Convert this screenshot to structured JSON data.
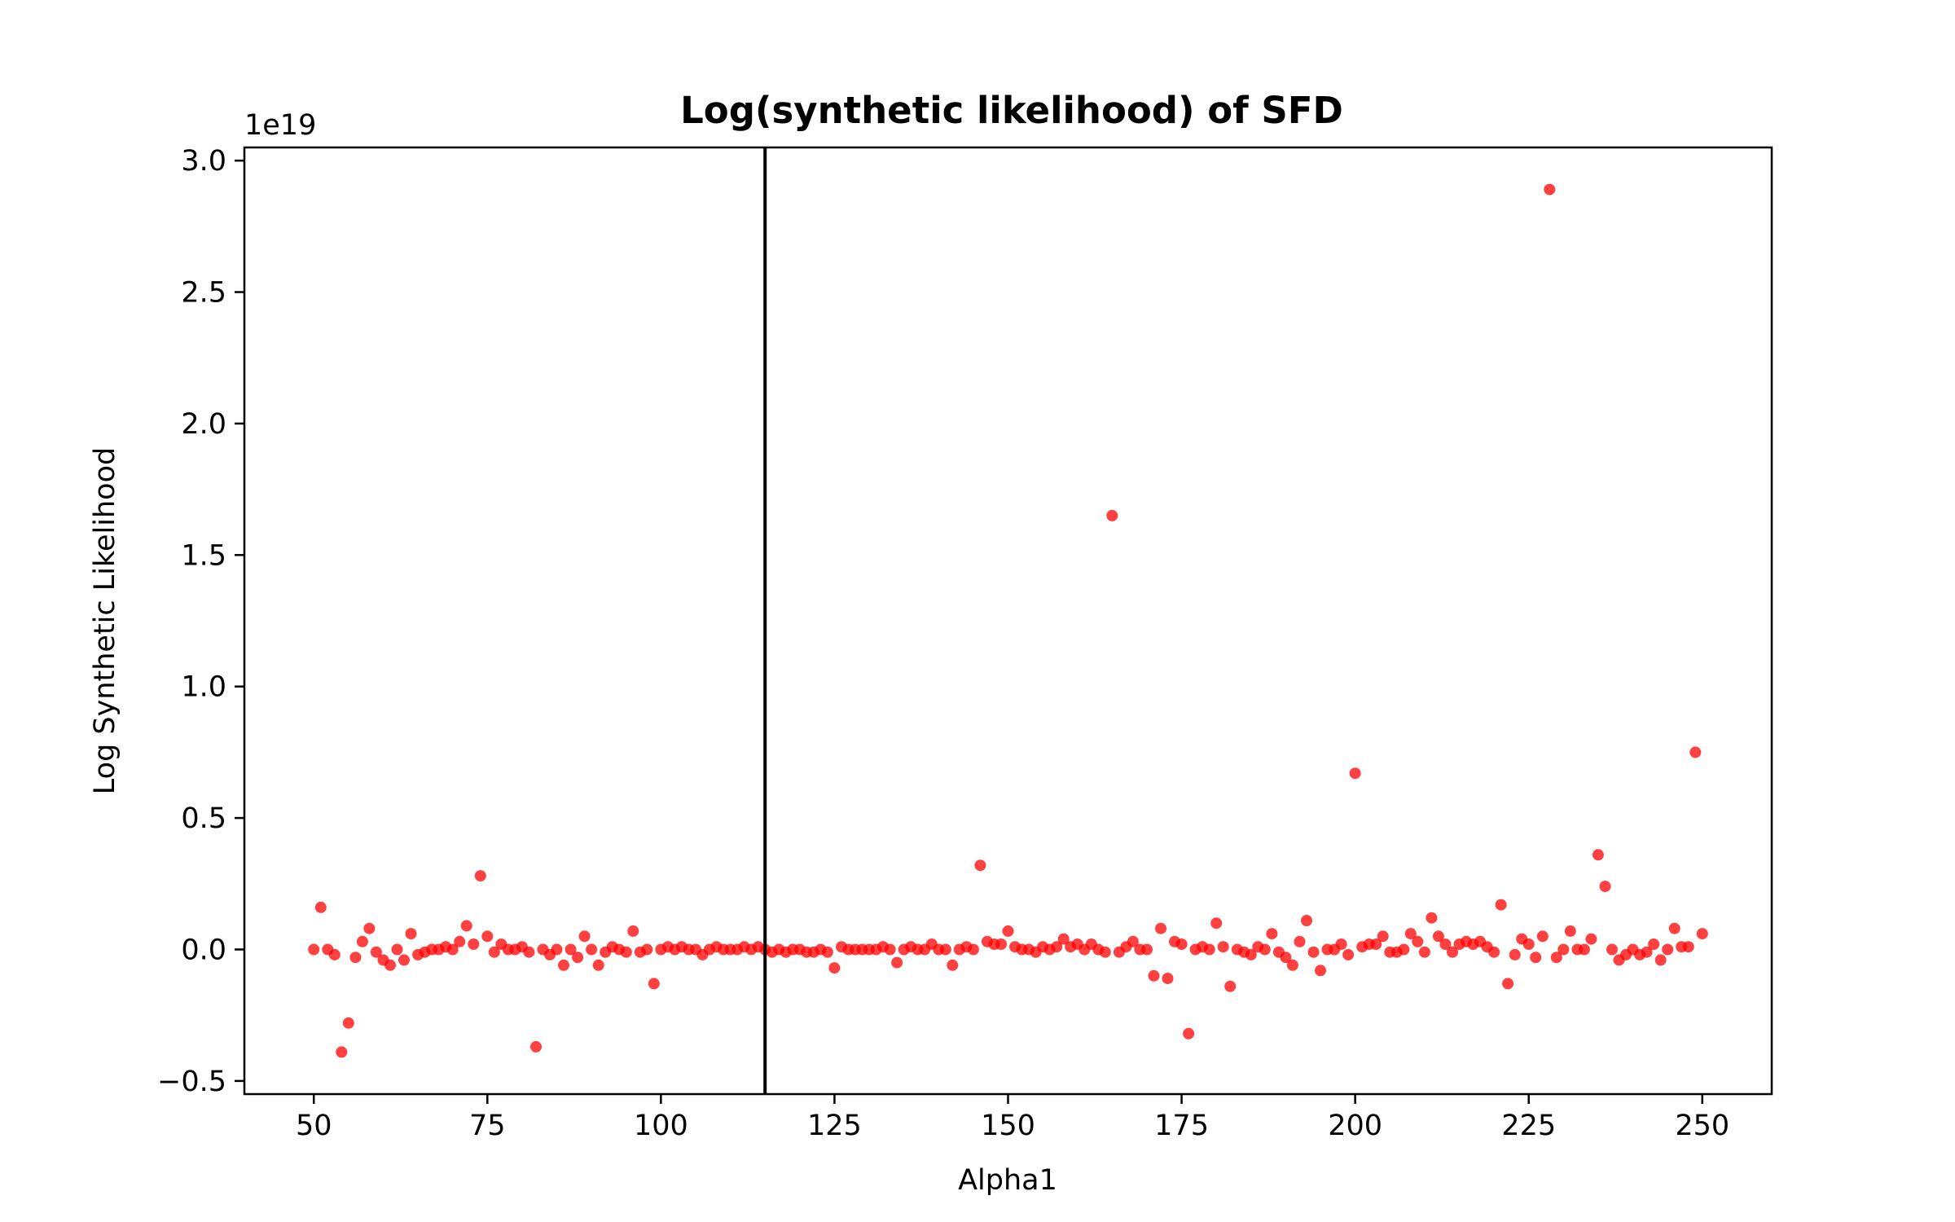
{
  "chart_data": {
    "type": "scatter",
    "title": "Log(synthetic likelihood) of SFD",
    "xlabel": "Alpha1",
    "ylabel": "Log Synthetic Likelihood",
    "y_scale_label": "1e19",
    "xlim": [
      40,
      260
    ],
    "ylim": [
      -0.55,
      3.05
    ],
    "xticks": [
      50,
      75,
      100,
      125,
      150,
      175,
      200,
      225,
      250
    ],
    "yticks": [
      -0.5,
      0.0,
      0.5,
      1.0,
      1.5,
      2.0,
      2.5,
      3.0
    ],
    "ytick_labels": [
      "−0.5",
      "0.0",
      "0.5",
      "1.0",
      "1.5",
      "2.0",
      "2.5",
      "3.0"
    ],
    "vertical_line_x": 115,
    "grid": false,
    "marker_color": "#ff0000",
    "line_color": "#000000",
    "series": [
      {
        "x": [
          50,
          51,
          52,
          53,
          54,
          55,
          56,
          57,
          58,
          59,
          60,
          61,
          62,
          63,
          64,
          65,
          66,
          67,
          68,
          69,
          70,
          71,
          72,
          73,
          74,
          75,
          76,
          77,
          78,
          79,
          80,
          81,
          82,
          83,
          84,
          85,
          86,
          87,
          88,
          89,
          90,
          91,
          92,
          93,
          94,
          95,
          96,
          97,
          98,
          99,
          100,
          101,
          102,
          103,
          104,
          105,
          106,
          107,
          108,
          109,
          110,
          111,
          112,
          113,
          114,
          115,
          116,
          117,
          118,
          119,
          120,
          121,
          122,
          123,
          124,
          125,
          126,
          127,
          128,
          129,
          130,
          131,
          132,
          133,
          134,
          135,
          136,
          137,
          138,
          139,
          140,
          141,
          142,
          143,
          144,
          145,
          146,
          147,
          148,
          149,
          150,
          151,
          152,
          153,
          154,
          155,
          156,
          157,
          158,
          159,
          160,
          161,
          162,
          163,
          164,
          165,
          166,
          167,
          168,
          169,
          170,
          171,
          172,
          173,
          174,
          175,
          176,
          177,
          178,
          179,
          180,
          181,
          182,
          183,
          184,
          185,
          186,
          187,
          188,
          189,
          190,
          191,
          192,
          193,
          194,
          195,
          196,
          197,
          198,
          199,
          200,
          201,
          202,
          203,
          204,
          205,
          206,
          207,
          208,
          209,
          210,
          211,
          212,
          213,
          214,
          215,
          216,
          217,
          218,
          219,
          220,
          221,
          222,
          223,
          224,
          225,
          226,
          227,
          228,
          229,
          230,
          231,
          232,
          233,
          234,
          235,
          236,
          237,
          238,
          239,
          240,
          241,
          242,
          243,
          244,
          245,
          246,
          247,
          248,
          249,
          250
        ],
        "y": [
          0.0,
          0.16,
          0.0,
          -0.02,
          -0.39,
          -0.28,
          -0.03,
          0.03,
          0.08,
          -0.01,
          -0.04,
          -0.06,
          0.0,
          -0.04,
          0.06,
          -0.02,
          -0.01,
          0.0,
          0.0,
          0.01,
          0.0,
          0.03,
          0.09,
          0.02,
          0.28,
          0.05,
          -0.01,
          0.02,
          0.0,
          0.0,
          0.01,
          -0.01,
          -0.37,
          0.0,
          -0.02,
          0.0,
          -0.06,
          0.0,
          -0.03,
          0.05,
          0.0,
          -0.06,
          -0.01,
          0.01,
          0.0,
          -0.01,
          0.07,
          -0.01,
          0.0,
          -0.13,
          0.0,
          0.01,
          0.0,
          0.01,
          0.0,
          0.0,
          -0.02,
          0.0,
          0.01,
          0.0,
          0.0,
          0.0,
          0.01,
          0.0,
          0.01,
          0.0,
          -0.01,
          0.0,
          -0.01,
          0.0,
          0.0,
          -0.01,
          -0.01,
          0.0,
          -0.01,
          -0.07,
          0.01,
          0.0,
          0.0,
          0.0,
          0.0,
          0.0,
          0.01,
          0.0,
          -0.05,
          0.0,
          0.01,
          0.0,
          0.0,
          0.02,
          0.0,
          0.0,
          -0.06,
          0.0,
          0.01,
          0.0,
          0.32,
          0.03,
          0.02,
          0.02,
          0.07,
          0.01,
          0.0,
          0.0,
          -0.01,
          0.01,
          0.0,
          0.01,
          0.04,
          0.01,
          0.02,
          0.0,
          0.02,
          0.0,
          -0.01,
          1.65,
          -0.01,
          0.01,
          0.03,
          0.0,
          0.0,
          -0.1,
          0.08,
          -0.11,
          0.03,
          0.02,
          -0.32,
          0.0,
          0.01,
          0.0,
          0.1,
          0.01,
          -0.14,
          0.0,
          -0.01,
          -0.02,
          0.01,
          0.0,
          0.06,
          -0.01,
          -0.03,
          -0.06,
          0.03,
          0.11,
          -0.01,
          -0.08,
          0.0,
          0.0,
          0.02,
          -0.02,
          0.67,
          0.01,
          0.02,
          0.02,
          0.05,
          -0.01,
          -0.01,
          0.0,
          0.06,
          0.03,
          -0.01,
          0.12,
          0.05,
          0.02,
          -0.01,
          0.02,
          0.03,
          0.02,
          0.03,
          0.01,
          -0.01,
          0.17,
          -0.13,
          -0.02,
          0.04,
          0.02,
          -0.03,
          0.05,
          2.89,
          -0.03,
          0.0,
          0.07,
          0.0,
          0.0,
          0.04,
          0.36,
          0.24,
          0.0,
          -0.04,
          -0.02,
          0.0,
          -0.02,
          -0.01,
          0.02,
          -0.04,
          0.0,
          0.08,
          0.01,
          0.01,
          0.75,
          0.06
        ]
      }
    ]
  }
}
